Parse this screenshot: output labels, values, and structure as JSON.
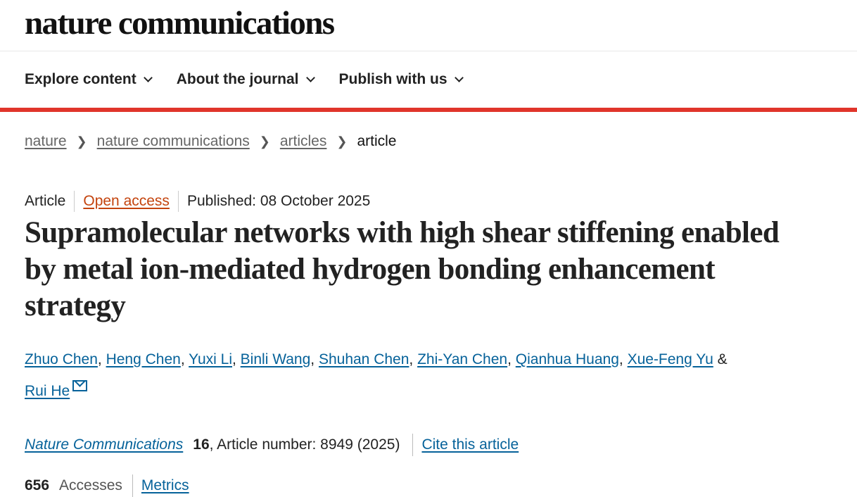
{
  "header": {
    "logo": "nature communications"
  },
  "nav": {
    "items": [
      {
        "label": "Explore content"
      },
      {
        "label": "About the journal"
      },
      {
        "label": "Publish with us"
      }
    ]
  },
  "breadcrumb": [
    "nature",
    "nature communications",
    "articles",
    "article"
  ],
  "article": {
    "type": "Article",
    "access": "Open access",
    "published": "Published: 08 October 2025",
    "title": "Supramolecular networks with high shear stiffening enabled by metal ion-mediated hydrogen bonding enhancement strategy",
    "authors": [
      "Zhuo Chen",
      "Heng Chen",
      "Yuxi Li",
      "Binli Wang",
      "Shuhan Chen",
      "Zhi-Yan Chen",
      "Qianhua Huang",
      "Xue-Feng Yu",
      "Rui He"
    ],
    "and": "&",
    "journal": "Nature Communications",
    "volume": "16",
    "article_number": ", Article number: 8949 (2025)",
    "cite": "Cite this article",
    "accesses_count": "656",
    "accesses_label": "Accesses",
    "metrics": "Metrics"
  },
  "colors": {
    "accent_red": "#e0352b",
    "link": "#06629a",
    "open_access": "#c4440e"
  }
}
